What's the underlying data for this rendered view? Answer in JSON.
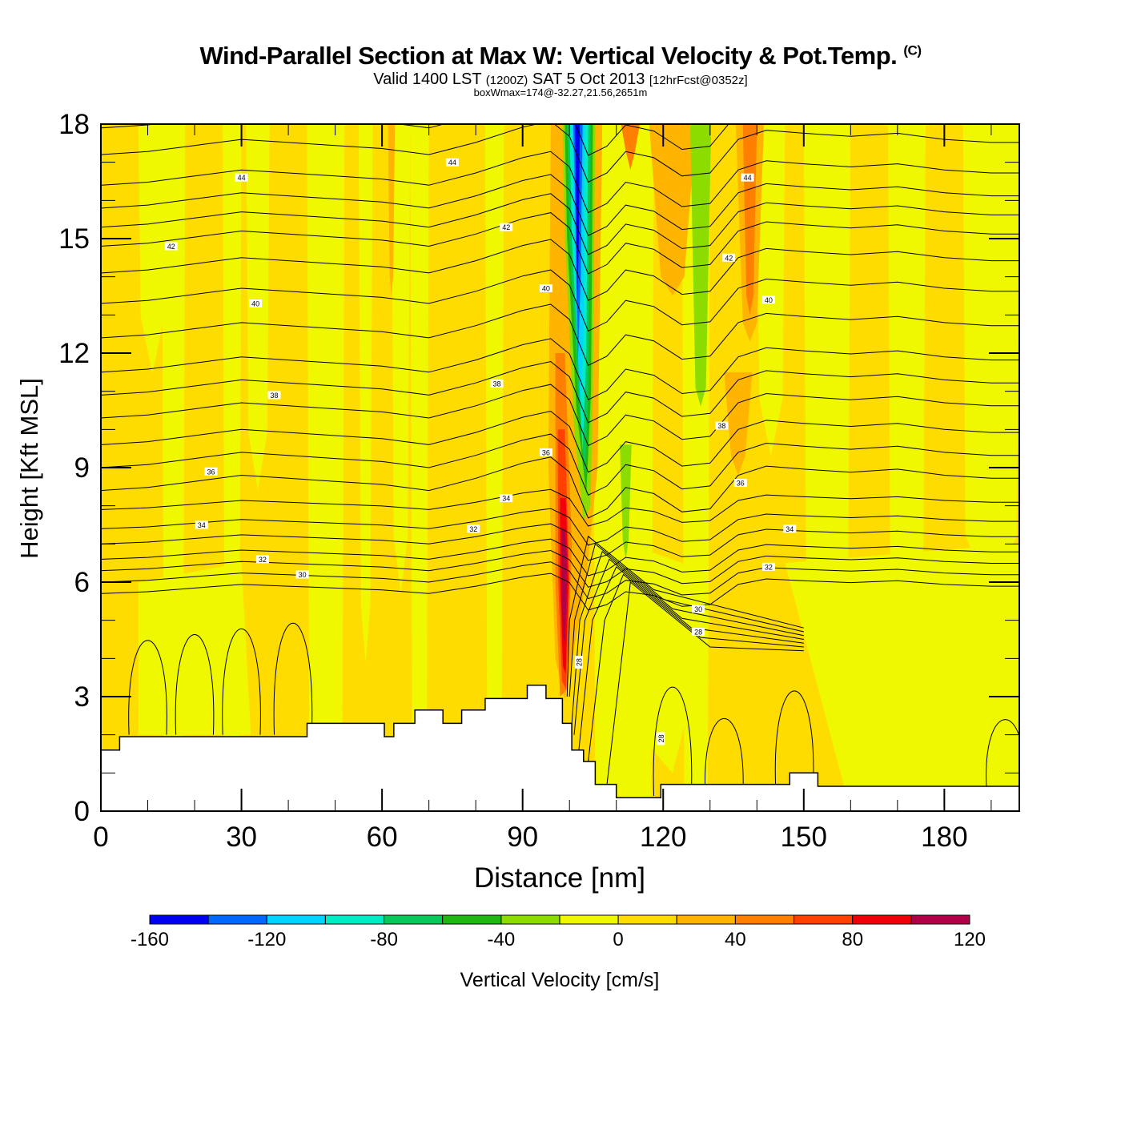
{
  "header": {
    "title": "Wind-Parallel Section at Max W: Vertical Velocity & Pot.Temp.",
    "copyright": "(C)",
    "valid_prefix": "Valid 1400 LST",
    "valid_utc": "(1200Z)",
    "valid_date": "SAT 5 Oct 2013",
    "forecast": "[12hrFcst@0352z]",
    "box_info": "boxWmax=174@-32.27,21.56,2651m"
  },
  "chart_data": {
    "type": "heatmap",
    "title": "Wind-Parallel Section at Max W: Vertical Velocity & Pot.Temp.",
    "xlabel": "Distance [nm]",
    "ylabel": "Height [Kft MSL]",
    "xlim": [
      0,
      196
    ],
    "ylim": [
      0,
      18
    ],
    "x_ticks": [
      "0",
      "30",
      "60",
      "90",
      "120",
      "150",
      "180"
    ],
    "y_ticks": [
      "0",
      "3",
      "6",
      "9",
      "12",
      "15",
      "18"
    ],
    "x_tick_values": [
      0,
      30,
      60,
      90,
      120,
      150,
      180
    ],
    "y_tick_values": [
      0,
      3,
      6,
      9,
      12,
      15,
      18
    ],
    "colorbar": {
      "label": "Vertical Velocity [cm/s]",
      "levels": [
        -160,
        -140,
        -120,
        -100,
        -80,
        -60,
        -40,
        -20,
        0,
        20,
        40,
        60,
        80,
        100,
        120
      ],
      "tick_labels": [
        "-160",
        "-120",
        "-80",
        "-40",
        "0",
        "40",
        "80",
        "120"
      ],
      "tick_values": [
        -160,
        -120,
        -80,
        -40,
        0,
        40,
        80,
        120
      ],
      "colors": [
        "#0000f0",
        "#0068ff",
        "#00d4ff",
        "#00ecc4",
        "#08c85a",
        "#20b810",
        "#8cdc00",
        "#f0f800",
        "#ffdc00",
        "#ffb400",
        "#ff8000",
        "#ff4000",
        "#f00008",
        "#b00048"
      ]
    },
    "terrain_profile": {
      "x": [
        0,
        4,
        4,
        44,
        44,
        60.5,
        60.5,
        62.5,
        62.5,
        67,
        67,
        73,
        73,
        77,
        77,
        82,
        82,
        91,
        91,
        95,
        95,
        98.5,
        98.5,
        100.5,
        100.5,
        103,
        103,
        105.5,
        105.5,
        110,
        110,
        119.5,
        119.5,
        147,
        147,
        153,
        153,
        166,
        166,
        196
      ],
      "y": [
        1.6,
        1.6,
        1.95,
        1.95,
        2.3,
        2.3,
        1.95,
        1.95,
        2.3,
        2.3,
        2.65,
        2.65,
        2.3,
        2.3,
        2.65,
        2.65,
        2.95,
        2.95,
        3.3,
        3.3,
        2.95,
        2.95,
        2.3,
        2.3,
        1.6,
        1.6,
        1.3,
        1.3,
        0.7,
        0.7,
        0.35,
        0.35,
        0.7,
        0.7,
        1.0,
        1.0,
        0.65,
        0.65,
        0.65,
        0.65
      ]
    },
    "wfield_features": [
      {
        "name": "downdraft core",
        "x": 101,
        "ybottom": 7.8,
        "ytop": 18,
        "min_w": -150
      },
      {
        "name": "updraft core",
        "x": 98.5,
        "ybottom": 2.9,
        "ytop": 9,
        "max_w": 110
      },
      {
        "name": "downdraft band",
        "x": 128,
        "ybottom": 10.5,
        "ytop": 18,
        "min_w": -30
      },
      {
        "name": "downdraft band",
        "x": 112,
        "ybottom": 6.5,
        "ytop": 9.5,
        "min_w": -30
      },
      {
        "name": "updraft band",
        "x": 138,
        "ybottom": 12.5,
        "ytop": 18,
        "max_w": 50
      }
    ],
    "theta_contour_labels": [
      {
        "text": "44",
        "x": 30,
        "y": 16.6
      },
      {
        "text": "44",
        "x": 75,
        "y": 17.0
      },
      {
        "text": "44",
        "x": 138,
        "y": 16.6
      },
      {
        "text": "42",
        "x": 15,
        "y": 14.8
      },
      {
        "text": "42",
        "x": 86.5,
        "y": 15.3
      },
      {
        "text": "42",
        "x": 134,
        "y": 14.5
      },
      {
        "text": "40",
        "x": 33,
        "y": 13.3
      },
      {
        "text": "40",
        "x": 95,
        "y": 13.7
      },
      {
        "text": "40",
        "x": 142.5,
        "y": 13.4
      },
      {
        "text": "38",
        "x": 37,
        "y": 10.9
      },
      {
        "text": "38",
        "x": 84.5,
        "y": 11.2
      },
      {
        "text": "38",
        "x": 132.5,
        "y": 10.1
      },
      {
        "text": "36",
        "x": 23.5,
        "y": 8.9
      },
      {
        "text": "36",
        "x": 95,
        "y": 9.4
      },
      {
        "text": "36",
        "x": 136.5,
        "y": 8.6
      },
      {
        "text": "34",
        "x": 21.5,
        "y": 7.5
      },
      {
        "text": "34",
        "x": 86.5,
        "y": 8.2
      },
      {
        "text": "34",
        "x": 147,
        "y": 7.4
      },
      {
        "text": "32",
        "x": 34.5,
        "y": 6.6
      },
      {
        "text": "32",
        "x": 79.5,
        "y": 7.4
      },
      {
        "text": "32",
        "x": 142.5,
        "y": 6.4
      },
      {
        "text": "30",
        "x": 43,
        "y": 6.2
      },
      {
        "text": "30",
        "x": 127.5,
        "y": 5.3
      },
      {
        "text": "28",
        "x": 127.5,
        "y": 4.7
      },
      {
        "text": "28",
        "x": 102,
        "y": 3.9,
        "rotated": true
      },
      {
        "text": "28",
        "x": 119.5,
        "y": 1.9,
        "rotated": true
      }
    ]
  }
}
